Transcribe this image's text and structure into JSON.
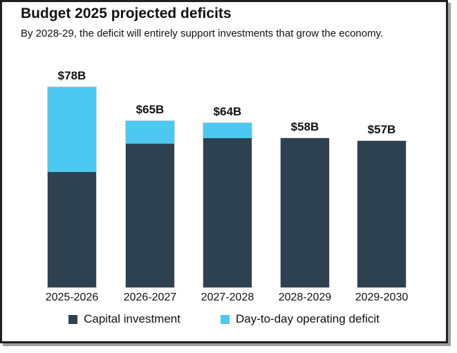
{
  "header": {
    "title": "Budget 2025 projected deficits",
    "subtitle": "By 2028-29, the deficit will entirely support investments that grow the economy."
  },
  "chart_data": {
    "type": "bar",
    "stacked": true,
    "title": "Budget 2025 projected deficits",
    "subtitle": "By 2028-29, the deficit will entirely support investments that grow the economy.",
    "categories": [
      "2025-2026",
      "2026-2027",
      "2027-2028",
      "2028-2029",
      "2029-2030"
    ],
    "series": [
      {
        "name": "Capital investment",
        "color": "#2e4151",
        "values": [
          45,
          56,
          58,
          58,
          57
        ]
      },
      {
        "name": "Day-to-day operating deficit",
        "color": "#4dc8f0",
        "values": [
          33,
          9,
          6,
          0,
          0
        ]
      }
    ],
    "totals": [
      78,
      65,
      64,
      58,
      57
    ],
    "total_labels": [
      "$78B",
      "$65B",
      "$64B",
      "$58B",
      "$57B"
    ],
    "unit": "billions of dollars",
    "xlabel": "",
    "ylabel": "",
    "y_axis_shown": false,
    "gridlines": false,
    "legend_position": "bottom"
  },
  "colors": {
    "capital_investment": "#2e4151",
    "operating_deficit": "#4dc8f0",
    "frame_border": "#1f1f1f",
    "bar_outline": "#d8d8d8",
    "text": "#111111"
  }
}
